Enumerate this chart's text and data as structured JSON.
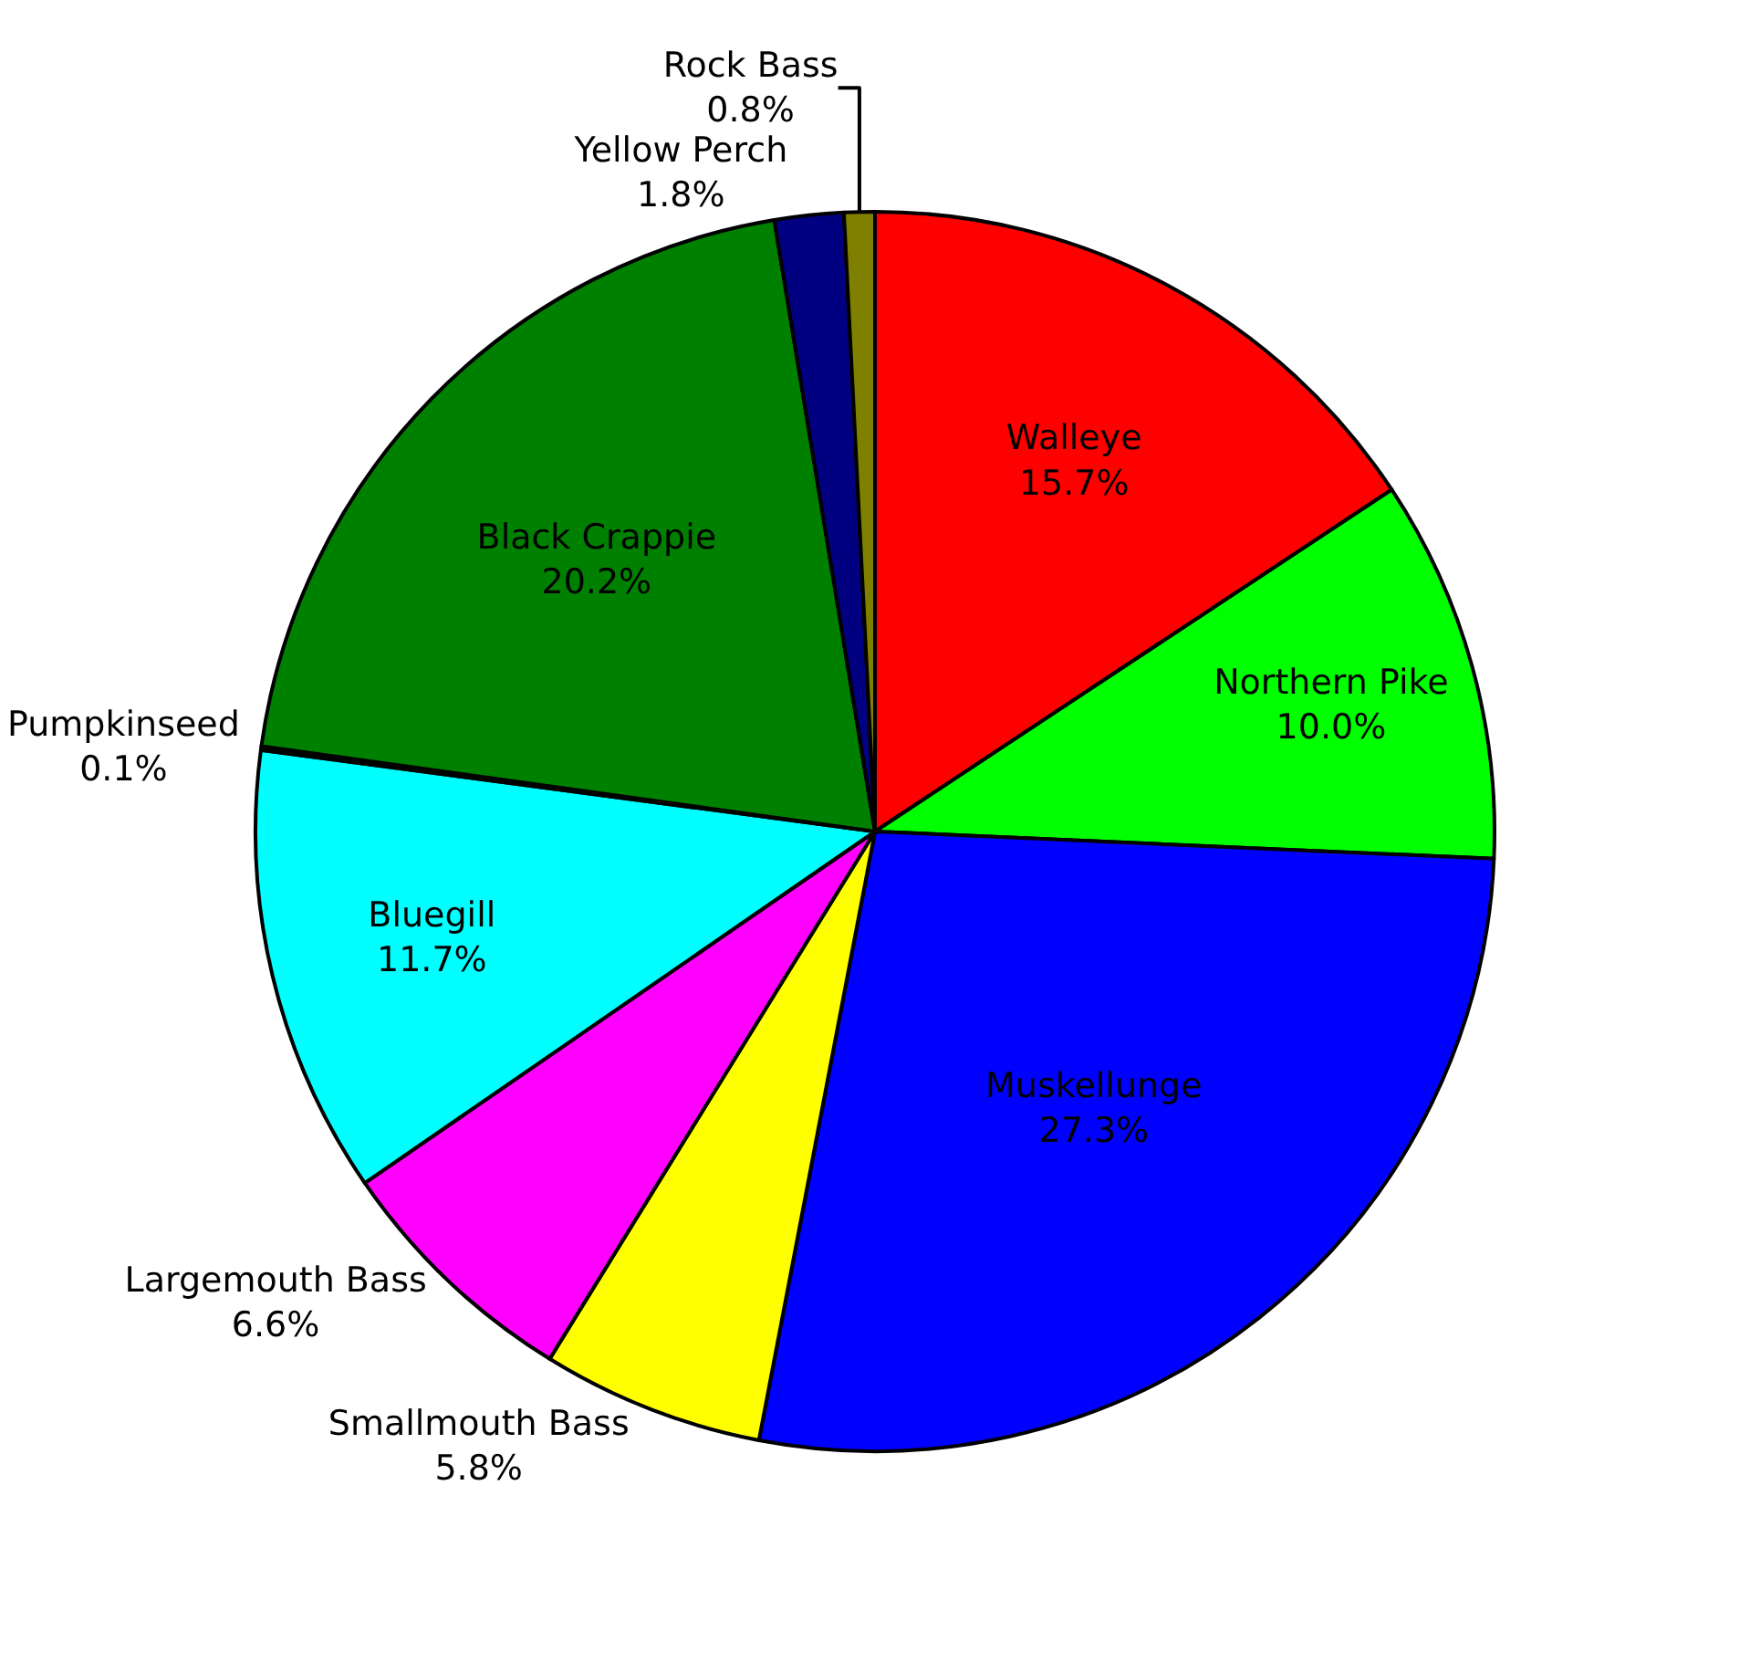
{
  "chart_data": {
    "type": "pie",
    "categories": [
      "Walleye",
      "Northern Pike",
      "Muskellunge",
      "Smallmouth Bass",
      "Largemouth Bass",
      "Bluegill",
      "Pumpkinseed",
      "Black Crappie",
      "Yellow Perch",
      "Rock Bass"
    ],
    "values": [
      15.7,
      10.0,
      27.3,
      5.8,
      6.6,
      11.7,
      0.1,
      20.2,
      1.8,
      0.8
    ],
    "value_labels": [
      "15.7%",
      "10.0%",
      "27.3%",
      "5.8%",
      "6.6%",
      "11.7%",
      "0.1%",
      "20.2%",
      "1.8%",
      "0.8%"
    ],
    "colors": [
      "#ff0000",
      "#00ff00",
      "#0000ff",
      "#ffff00",
      "#ff00ff",
      "#00ffff",
      "#800000",
      "#008000",
      "#000080",
      "#808000"
    ]
  }
}
